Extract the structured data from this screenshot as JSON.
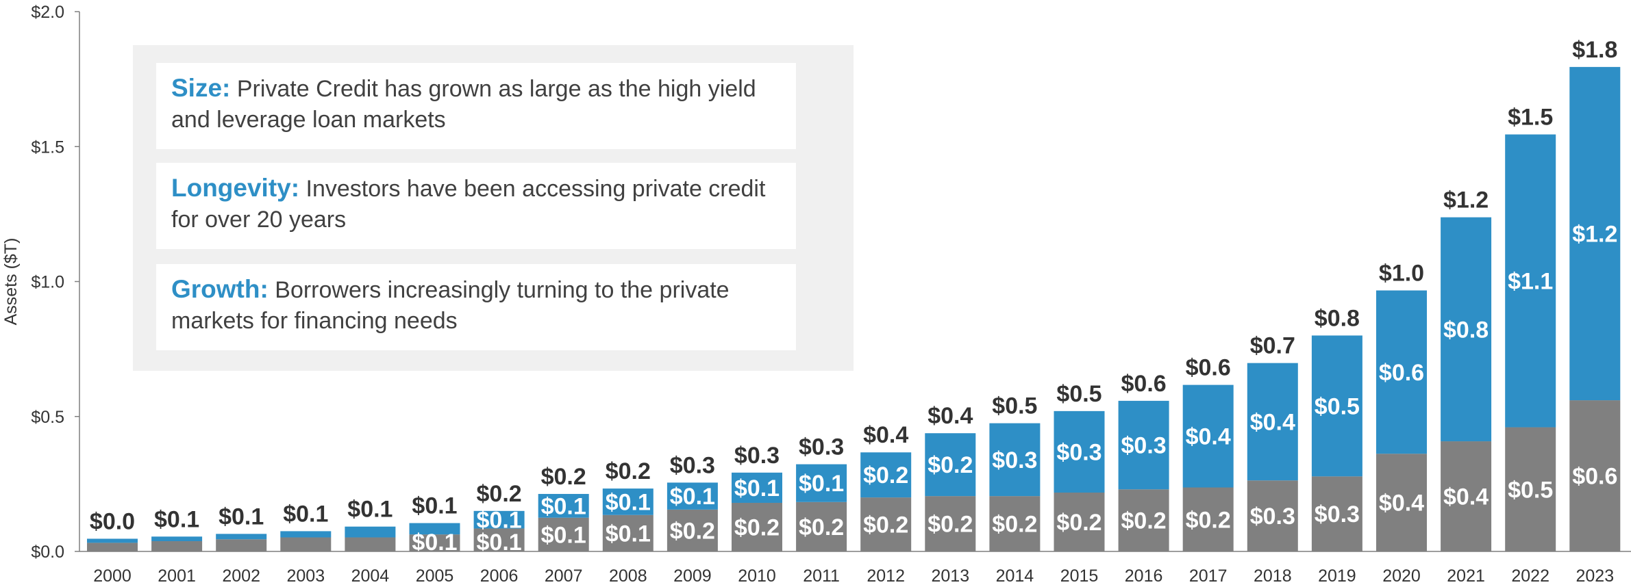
{
  "chart_data": {
    "type": "bar",
    "stacked": true,
    "ylabel": "Assets ($T)",
    "xlabel": "",
    "ylim": [
      0,
      2.0
    ],
    "yticks": [
      "$0.0",
      "$0.5",
      "$1.0",
      "$1.5",
      "$2.0"
    ],
    "ytick_values": [
      0,
      0.5,
      1.0,
      1.5,
      2.0
    ],
    "grid": false,
    "categories": [
      "2000",
      "2001",
      "2002",
      "2003",
      "2004",
      "2005",
      "2006",
      "2007",
      "2008",
      "2009",
      "2010",
      "2011",
      "2012",
      "2013",
      "2014",
      "2015",
      "2016",
      "2017",
      "2018",
      "2019",
      "2020",
      "2021",
      "2022",
      "2023"
    ],
    "series": [
      {
        "color": "#808080",
        "values": [
          0.032,
          0.038,
          0.045,
          0.052,
          0.052,
          0.063,
          0.085,
          0.125,
          0.135,
          0.155,
          0.18,
          0.183,
          0.2,
          0.205,
          0.205,
          0.218,
          0.23,
          0.237,
          0.263,
          0.278,
          0.362,
          0.408,
          0.46,
          0.56
        ],
        "labels": [
          "",
          "",
          "",
          "",
          "",
          "$0.1",
          "$0.1",
          "$0.1",
          "$0.1",
          "$0.2",
          "$0.2",
          "$0.2",
          "$0.2",
          "$0.2",
          "$0.2",
          "$0.2",
          "$0.2",
          "$0.2",
          "$0.3",
          "$0.3",
          "$0.4",
          "$0.4",
          "$0.5",
          "$0.6"
        ]
      },
      {
        "color": "#2e8fc6",
        "values": [
          0.015,
          0.017,
          0.02,
          0.023,
          0.04,
          0.042,
          0.065,
          0.088,
          0.098,
          0.1,
          0.112,
          0.14,
          0.167,
          0.233,
          0.27,
          0.302,
          0.328,
          0.38,
          0.435,
          0.522,
          0.605,
          0.83,
          1.085,
          1.235
        ],
        "labels": [
          "",
          "",
          "",
          "",
          "",
          "",
          "$0.1",
          "$0.1",
          "$0.1",
          "$0.1",
          "$0.1",
          "$0.1",
          "$0.2",
          "$0.2",
          "$0.3",
          "$0.3",
          "$0.3",
          "$0.4",
          "$0.4",
          "$0.5",
          "$0.6",
          "$0.8",
          "$1.1",
          "$1.2"
        ]
      }
    ],
    "totals": [
      "$0.0",
      "$0.1",
      "$0.1",
      "$0.1",
      "$0.1",
      "$0.1",
      "$0.2",
      "$0.2",
      "$0.2",
      "$0.3",
      "$0.3",
      "$0.3",
      "$0.4",
      "$0.4",
      "$0.5",
      "$0.5",
      "$0.6",
      "$0.6",
      "$0.7",
      "$0.8",
      "$1.0",
      "$1.2",
      "$1.5",
      "$1.8"
    ]
  },
  "callout": {
    "size": {
      "head": "Size:",
      "text": "Private Credit has grown as large as the high yield and leverage loan markets"
    },
    "longevity": {
      "head": "Longevity:",
      "text": "Investors have been accessing private credit for over 20 years"
    },
    "growth": {
      "head": "Growth:",
      "text": "Borrowers increasingly turning to the private markets for financing needs"
    }
  }
}
